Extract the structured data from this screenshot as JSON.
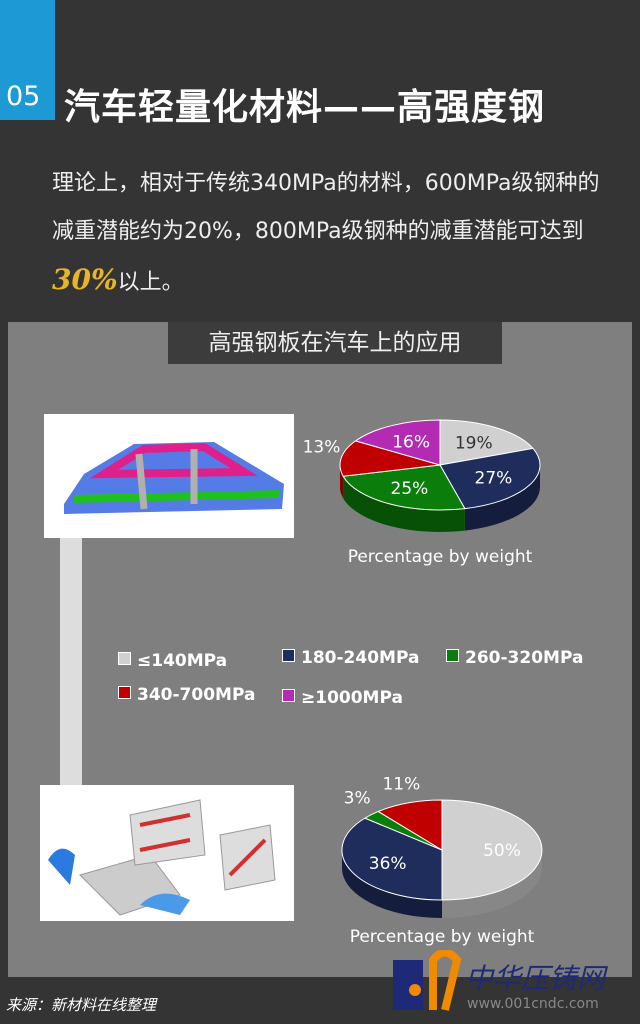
{
  "header": {
    "number": "05",
    "title": "汽车轻量化材料——高强度钢"
  },
  "intro": {
    "text_before": "理论上，相对于传统340MPa的材料，600MPa级钢种的减重潜能约为20%，800MPa级钢种的减重潜能可达到",
    "highlight": "30%",
    "text_after": "以上。"
  },
  "panel": {
    "title": "高强钢板在汽车上的应用"
  },
  "legend": [
    {
      "label": "≤140MPa",
      "color": "#d0d0d0"
    },
    {
      "label": "180-240MPa",
      "color": "#1f2d5c"
    },
    {
      "label": "260-320MPa",
      "color": "#0a7d0a"
    },
    {
      "label": "340-700MPa",
      "color": "#c00000"
    },
    {
      "label": "≥1000MPa",
      "color": "#b32bb3"
    }
  ],
  "chart_data": [
    {
      "type": "pie",
      "xlabel": "Percentage by weight",
      "categories": [
        "≤140MPa",
        "180-240MPa",
        "260-320MPa",
        "340-700MPa",
        "≥1000MPa"
      ],
      "values": [
        19,
        27,
        25,
        13,
        16
      ],
      "labels": [
        "19%",
        "27%",
        "25%",
        "13%",
        "16%"
      ]
    },
    {
      "type": "pie",
      "xlabel": "Percentage by weight",
      "categories": [
        "≤140MPa",
        "180-240MPa",
        "260-320MPa",
        "340-700MPa"
      ],
      "values": [
        50,
        36,
        3,
        11
      ],
      "labels": [
        "50%",
        "36%",
        "3%",
        "11%"
      ]
    }
  ],
  "footer": {
    "source": "来源：新材料在线整理",
    "watermark_text": "中华压铸网",
    "watermark_url": "www.001cndc.com"
  }
}
